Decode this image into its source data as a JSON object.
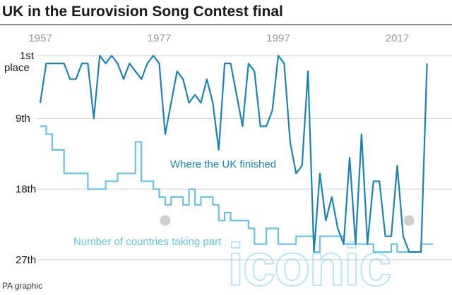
{
  "chart_data": {
    "type": "line",
    "title": "UK in the Eurovision Song Contest final",
    "x_ticks": [
      "1957",
      "1977",
      "1997",
      "2017"
    ],
    "y_ticks": [
      {
        "value": 1,
        "label": [
          "1st",
          "place"
        ]
      },
      {
        "value": 9,
        "label": [
          "9th"
        ]
      },
      {
        "value": 18,
        "label": [
          "18th"
        ]
      },
      {
        "value": 27,
        "label": [
          "27th"
        ]
      }
    ],
    "xlim": [
      1957,
      2023
    ],
    "ylim": [
      1,
      27
    ],
    "y_inverted": true,
    "grid": "horizontal",
    "series": [
      {
        "name": "Where the UK finished",
        "style": "line",
        "color": "#1a83b3",
        "x": [
          1957,
          1958,
          1959,
          1960,
          1961,
          1962,
          1963,
          1964,
          1965,
          1966,
          1967,
          1968,
          1969,
          1970,
          1971,
          1972,
          1973,
          1974,
          1975,
          1976,
          1977,
          1978,
          1979,
          1980,
          1981,
          1982,
          1983,
          1984,
          1985,
          1986,
          1987,
          1988,
          1989,
          1990,
          1991,
          1992,
          1993,
          1994,
          1995,
          1996,
          1997,
          1998,
          1999,
          2000,
          2001,
          2002,
          2003,
          2004,
          2005,
          2006,
          2007,
          2008,
          2009,
          2010,
          2011,
          2012,
          2013,
          2014,
          2015,
          2016,
          2017,
          2018,
          2019,
          2020,
          2021,
          2022
        ],
        "y": [
          7,
          2,
          2,
          2,
          2,
          4,
          4,
          2,
          2,
          9,
          1,
          2,
          1,
          2,
          4,
          2,
          3,
          4,
          2,
          1,
          2,
          11,
          7,
          3,
          4,
          7,
          6,
          7,
          4,
          7,
          13,
          2,
          2,
          6,
          10,
          2,
          3,
          10,
          10,
          8,
          1,
          2,
          12,
          16,
          15,
          3,
          26,
          16,
          22,
          19,
          23,
          25,
          14,
          25,
          11,
          25,
          17,
          17,
          24,
          24,
          15,
          24,
          26,
          26,
          26,
          2
        ],
        "label_text": "Where the UK finished"
      },
      {
        "name": "Number of countries taking part",
        "style": "step",
        "color": "#6ac1e5",
        "x": [
          1957,
          1958,
          1959,
          1960,
          1961,
          1962,
          1963,
          1964,
          1965,
          1966,
          1967,
          1968,
          1969,
          1970,
          1971,
          1972,
          1973,
          1974,
          1975,
          1976,
          1977,
          1978,
          1979,
          1980,
          1981,
          1982,
          1983,
          1984,
          1985,
          1986,
          1987,
          1988,
          1989,
          1990,
          1991,
          1992,
          1993,
          1994,
          1995,
          1996,
          1997,
          1998,
          1999,
          2000,
          2001,
          2002,
          2003,
          2004,
          2005,
          2006,
          2007,
          2008,
          2009,
          2010,
          2011,
          2012,
          2013,
          2014,
          2015,
          2016,
          2017,
          2018,
          2019,
          2020,
          2021,
          2022
        ],
        "y": [
          10,
          11,
          13,
          13,
          16,
          16,
          16,
          16,
          18,
          18,
          18,
          17,
          17,
          16,
          16,
          16,
          12,
          17,
          17,
          18,
          19,
          20,
          19,
          19,
          20,
          18,
          20,
          19,
          19,
          20,
          22,
          21,
          22,
          22,
          22,
          23,
          25,
          25,
          23,
          23,
          25,
          25,
          25,
          24,
          24,
          24,
          26,
          24,
          24,
          24,
          24,
          25,
          25,
          25,
          25,
          25,
          26,
          26,
          26,
          25,
          26,
          26,
          26,
          26,
          25,
          25
        ],
        "label_text": "Number of countries taking part"
      }
    ]
  },
  "labels": {
    "uk": "Where the UK finished",
    "countries": "Number of countries taking part"
  },
  "source": "PA graphic",
  "watermark": "iconic",
  "colors": {
    "uk": "#1a83b3",
    "countries": "#6ac1e5",
    "grid": "#c8c8c8",
    "marker": "#cfcfcf"
  }
}
